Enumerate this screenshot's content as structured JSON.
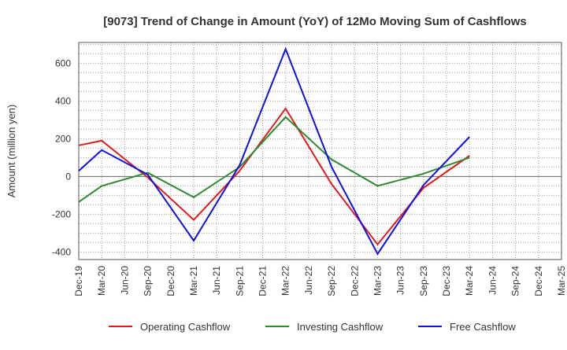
{
  "chart_data": {
    "type": "line",
    "title": "[9073]  Trend of Change in Amount (YoY) of 12Mo Moving Sum of Cashflows",
    "xlabel": "",
    "ylabel": "Amount (million yen)",
    "ylim": [
      -440,
      710
    ],
    "yticks": [
      600,
      400,
      200,
      0,
      -200,
      -400
    ],
    "categories": [
      "Dec-19",
      "Mar-20",
      "Jun-20",
      "Sep-20",
      "Dec-20",
      "Mar-21",
      "Jun-21",
      "Sep-21",
      "Dec-21",
      "Mar-22",
      "Jun-22",
      "Sep-22",
      "Dec-22",
      "Mar-23",
      "Jun-23",
      "Sep-23",
      "Dec-23",
      "Mar-24",
      "Jun-24",
      "Sep-24",
      "Dec-24",
      "Mar-25"
    ],
    "series": [
      {
        "name": "Operating Cashflow",
        "color": "#e31a1c",
        "values": [
          165,
          190,
          null,
          -5,
          null,
          -230,
          null,
          30,
          null,
          360,
          null,
          -40,
          null,
          -360,
          null,
          -60,
          null,
          110,
          null,
          null,
          null,
          null
        ]
      },
      {
        "name": "Investing Cashflow",
        "color": "#2e8b2e",
        "values": [
          -135,
          -50,
          null,
          20,
          null,
          -110,
          null,
          50,
          null,
          315,
          null,
          90,
          null,
          -50,
          null,
          15,
          null,
          100,
          null,
          null,
          null,
          null
        ]
      },
      {
        "name": "Free Cashflow",
        "color": "#1010e0",
        "values": [
          30,
          140,
          null,
          10,
          null,
          -340,
          null,
          60,
          null,
          675,
          null,
          50,
          null,
          -410,
          null,
          -45,
          null,
          210,
          null,
          null,
          null,
          null
        ]
      }
    ],
    "grid": true,
    "legend": "bottom"
  }
}
